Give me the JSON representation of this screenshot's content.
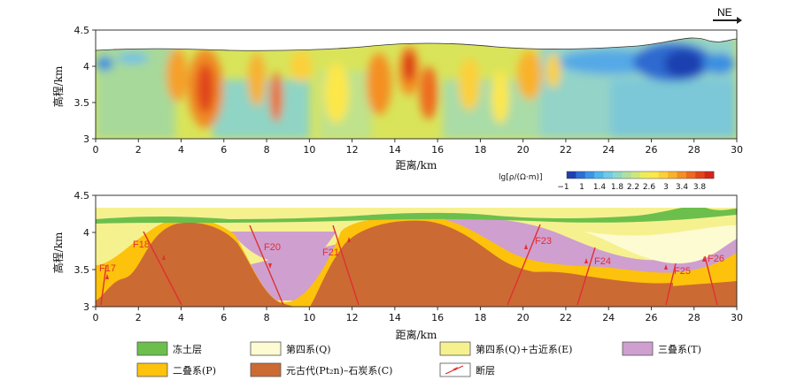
{
  "direction_label": "NE",
  "top_panel": {
    "ylabel": "高程/km",
    "xlabel": "距离/km",
    "yticks": [
      "3",
      "3.5",
      "4",
      "4.5"
    ],
    "xticks": [
      "0",
      "2",
      "4",
      "6",
      "8",
      "10",
      "12",
      "14",
      "16",
      "18",
      "20",
      "22",
      "24",
      "26",
      "28",
      "30"
    ]
  },
  "colorbar": {
    "label": "lg[ρ/(Ω·m)]",
    "ticks": [
      "−1",
      "1",
      "1.4",
      "1.8",
      "2.2",
      "2.6",
      "3",
      "3.4",
      "3.8"
    ],
    "colors": [
      "#1f3fb0",
      "#2c6ed6",
      "#3a95e8",
      "#4fb6ee",
      "#6fcbe6",
      "#8fd8c8",
      "#aee0a0",
      "#cfe67e",
      "#ecec5a",
      "#fde74a",
      "#fcd03a",
      "#f9b22c",
      "#f58f22",
      "#ee6a1c",
      "#e2441a",
      "#d42419"
    ]
  },
  "bottom_panel": {
    "ylabel": "高程/km",
    "xlabel": "距离/km",
    "yticks": [
      "3",
      "3.5",
      "4",
      "4.5"
    ],
    "xticks": [
      "0",
      "2",
      "4",
      "6",
      "8",
      "10",
      "12",
      "14",
      "16",
      "18",
      "20",
      "22",
      "24",
      "26",
      "28",
      "30"
    ],
    "faults": [
      "F17",
      "F18",
      "F20",
      "F21",
      "F23",
      "F24",
      "F25",
      "F26"
    ]
  },
  "legend": [
    {
      "label": "冻土层",
      "color": "#6cbf4c"
    },
    {
      "label": "第四系(Q)",
      "color": "#fdfbd2"
    },
    {
      "label": "第四系(Q)+古近系(E)",
      "color": "#f6f18f"
    },
    {
      "label": "三叠系(T)",
      "color": "#cf9fd0"
    },
    {
      "label": "二叠系(P)",
      "color": "#fcc20c"
    },
    {
      "label": "元古代(Pt₂n)–石炭系(C)",
      "color": "#cc6a34"
    },
    {
      "label": "断层",
      "color": "#e03030"
    }
  ]
}
